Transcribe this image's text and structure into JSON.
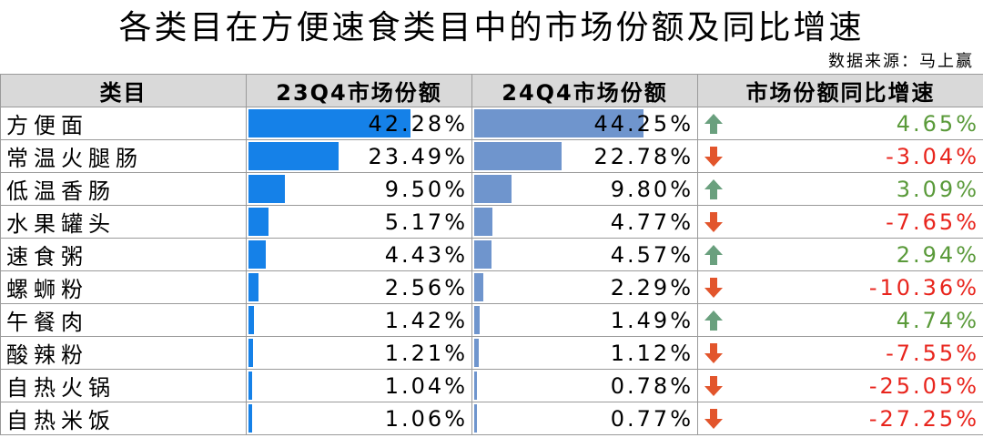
{
  "title": "各类目在方便速食类目中的市场份额及同比增速",
  "source": "数据来源：马上赢",
  "colors": {
    "bar_23q4": "#1581e8",
    "bar_24q4": "#6f95cd",
    "up": "#6aa07e",
    "down": "#e2552c",
    "positive_text": "#5a9a3a",
    "negative_text": "#e8251d"
  },
  "chart_data": {
    "type": "table",
    "columns": [
      "类目",
      "23Q4市场份额",
      "24Q4市场份额",
      "市场份额同比增速"
    ],
    "rows": [
      {
        "category": "方便面",
        "share_23q4": 42.28,
        "share_23q4_text": "42.28%",
        "share_24q4": 44.25,
        "share_24q4_text": "44.25%",
        "yoy": 4.65,
        "yoy_text": "4.65%",
        "trend": "up"
      },
      {
        "category": "常温火腿肠",
        "share_23q4": 23.49,
        "share_23q4_text": "23.49%",
        "share_24q4": 22.78,
        "share_24q4_text": "22.78%",
        "yoy": -3.04,
        "yoy_text": "-3.04%",
        "trend": "down"
      },
      {
        "category": "低温香肠",
        "share_23q4": 9.5,
        "share_23q4_text": "9.50%",
        "share_24q4": 9.8,
        "share_24q4_text": "9.80%",
        "yoy": 3.09,
        "yoy_text": "3.09%",
        "trend": "up"
      },
      {
        "category": "水果罐头",
        "share_23q4": 5.17,
        "share_23q4_text": "5.17%",
        "share_24q4": 4.77,
        "share_24q4_text": "4.77%",
        "yoy": -7.65,
        "yoy_text": "-7.65%",
        "trend": "down"
      },
      {
        "category": "速食粥",
        "share_23q4": 4.43,
        "share_23q4_text": "4.43%",
        "share_24q4": 4.57,
        "share_24q4_text": "4.57%",
        "yoy": 2.94,
        "yoy_text": "2.94%",
        "trend": "up"
      },
      {
        "category": "螺蛳粉",
        "share_23q4": 2.56,
        "share_23q4_text": "2.56%",
        "share_24q4": 2.29,
        "share_24q4_text": "2.29%",
        "yoy": -10.36,
        "yoy_text": "-10.36%",
        "trend": "down"
      },
      {
        "category": "午餐肉",
        "share_23q4": 1.42,
        "share_23q4_text": "1.42%",
        "share_24q4": 1.49,
        "share_24q4_text": "1.49%",
        "yoy": 4.74,
        "yoy_text": "4.74%",
        "trend": "up"
      },
      {
        "category": "酸辣粉",
        "share_23q4": 1.21,
        "share_23q4_text": "1.21%",
        "share_24q4": 1.12,
        "share_24q4_text": "1.12%",
        "yoy": -7.55,
        "yoy_text": "-7.55%",
        "trend": "down"
      },
      {
        "category": "自热火锅",
        "share_23q4": 1.04,
        "share_23q4_text": "1.04%",
        "share_24q4": 0.78,
        "share_24q4_text": "0.78%",
        "yoy": -25.05,
        "yoy_text": "-25.05%",
        "trend": "down"
      },
      {
        "category": "自热米饭",
        "share_23q4": 1.06,
        "share_23q4_text": "1.06%",
        "share_24q4": 0.77,
        "share_24q4_text": "0.77%",
        "yoy": -27.25,
        "yoy_text": "-27.25%",
        "trend": "down"
      }
    ]
  }
}
